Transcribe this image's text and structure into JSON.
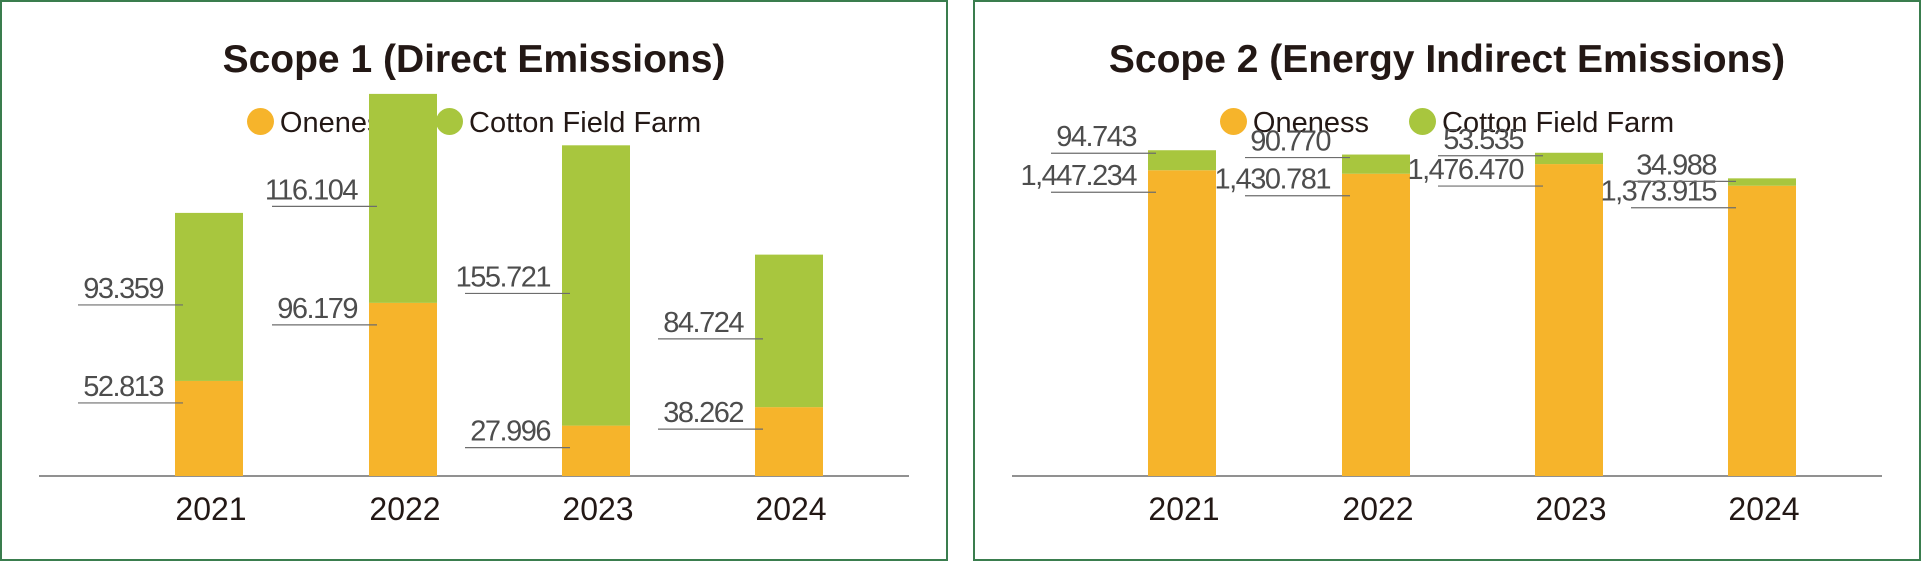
{
  "chart_data": [
    {
      "type": "bar",
      "stacked": true,
      "title": "Scope 1 (Direct Emissions)",
      "categories": [
        "2021",
        "2022",
        "2023",
        "2024"
      ],
      "series": [
        {
          "name": "Oneness",
          "color": "#f6b42b",
          "values": [
            52.813,
            96.179,
            27.996,
            38.262
          ],
          "labels": [
            "52.813",
            "96.179",
            "27.996",
            "38.262"
          ]
        },
        {
          "name": "Cotton Field Farm",
          "color": "#a8c63e",
          "values": [
            93.359,
            116.104,
            155.721,
            84.724
          ],
          "labels": [
            "93.359",
            "116.104",
            "155.721",
            "84.724"
          ]
        }
      ],
      "ylim": [
        0,
        250
      ],
      "xlabel": "",
      "ylabel": "",
      "legend": "top-center",
      "grid": false
    },
    {
      "type": "bar",
      "stacked": true,
      "title": "Scope 2 (Energy Indirect Emissions)",
      "categories": [
        "2021",
        "2022",
        "2023",
        "2024"
      ],
      "series": [
        {
          "name": "Oneness",
          "color": "#f6b42b",
          "values": [
            1447.234,
            1430.781,
            1476.47,
            1373.915
          ],
          "labels": [
            "1,447.234",
            "1,430.781",
            "1,476.470",
            "1,373.915"
          ]
        },
        {
          "name": "Cotton Field Farm",
          "color": "#a8c63e",
          "values": [
            94.743,
            90.77,
            53.535,
            34.988
          ],
          "labels": [
            "94.743",
            "90.770",
            "53.535",
            "34.988"
          ]
        }
      ],
      "ylim": [
        0,
        2130
      ],
      "xlabel": "",
      "ylabel": "",
      "legend": "top-center",
      "grid": false
    }
  ]
}
